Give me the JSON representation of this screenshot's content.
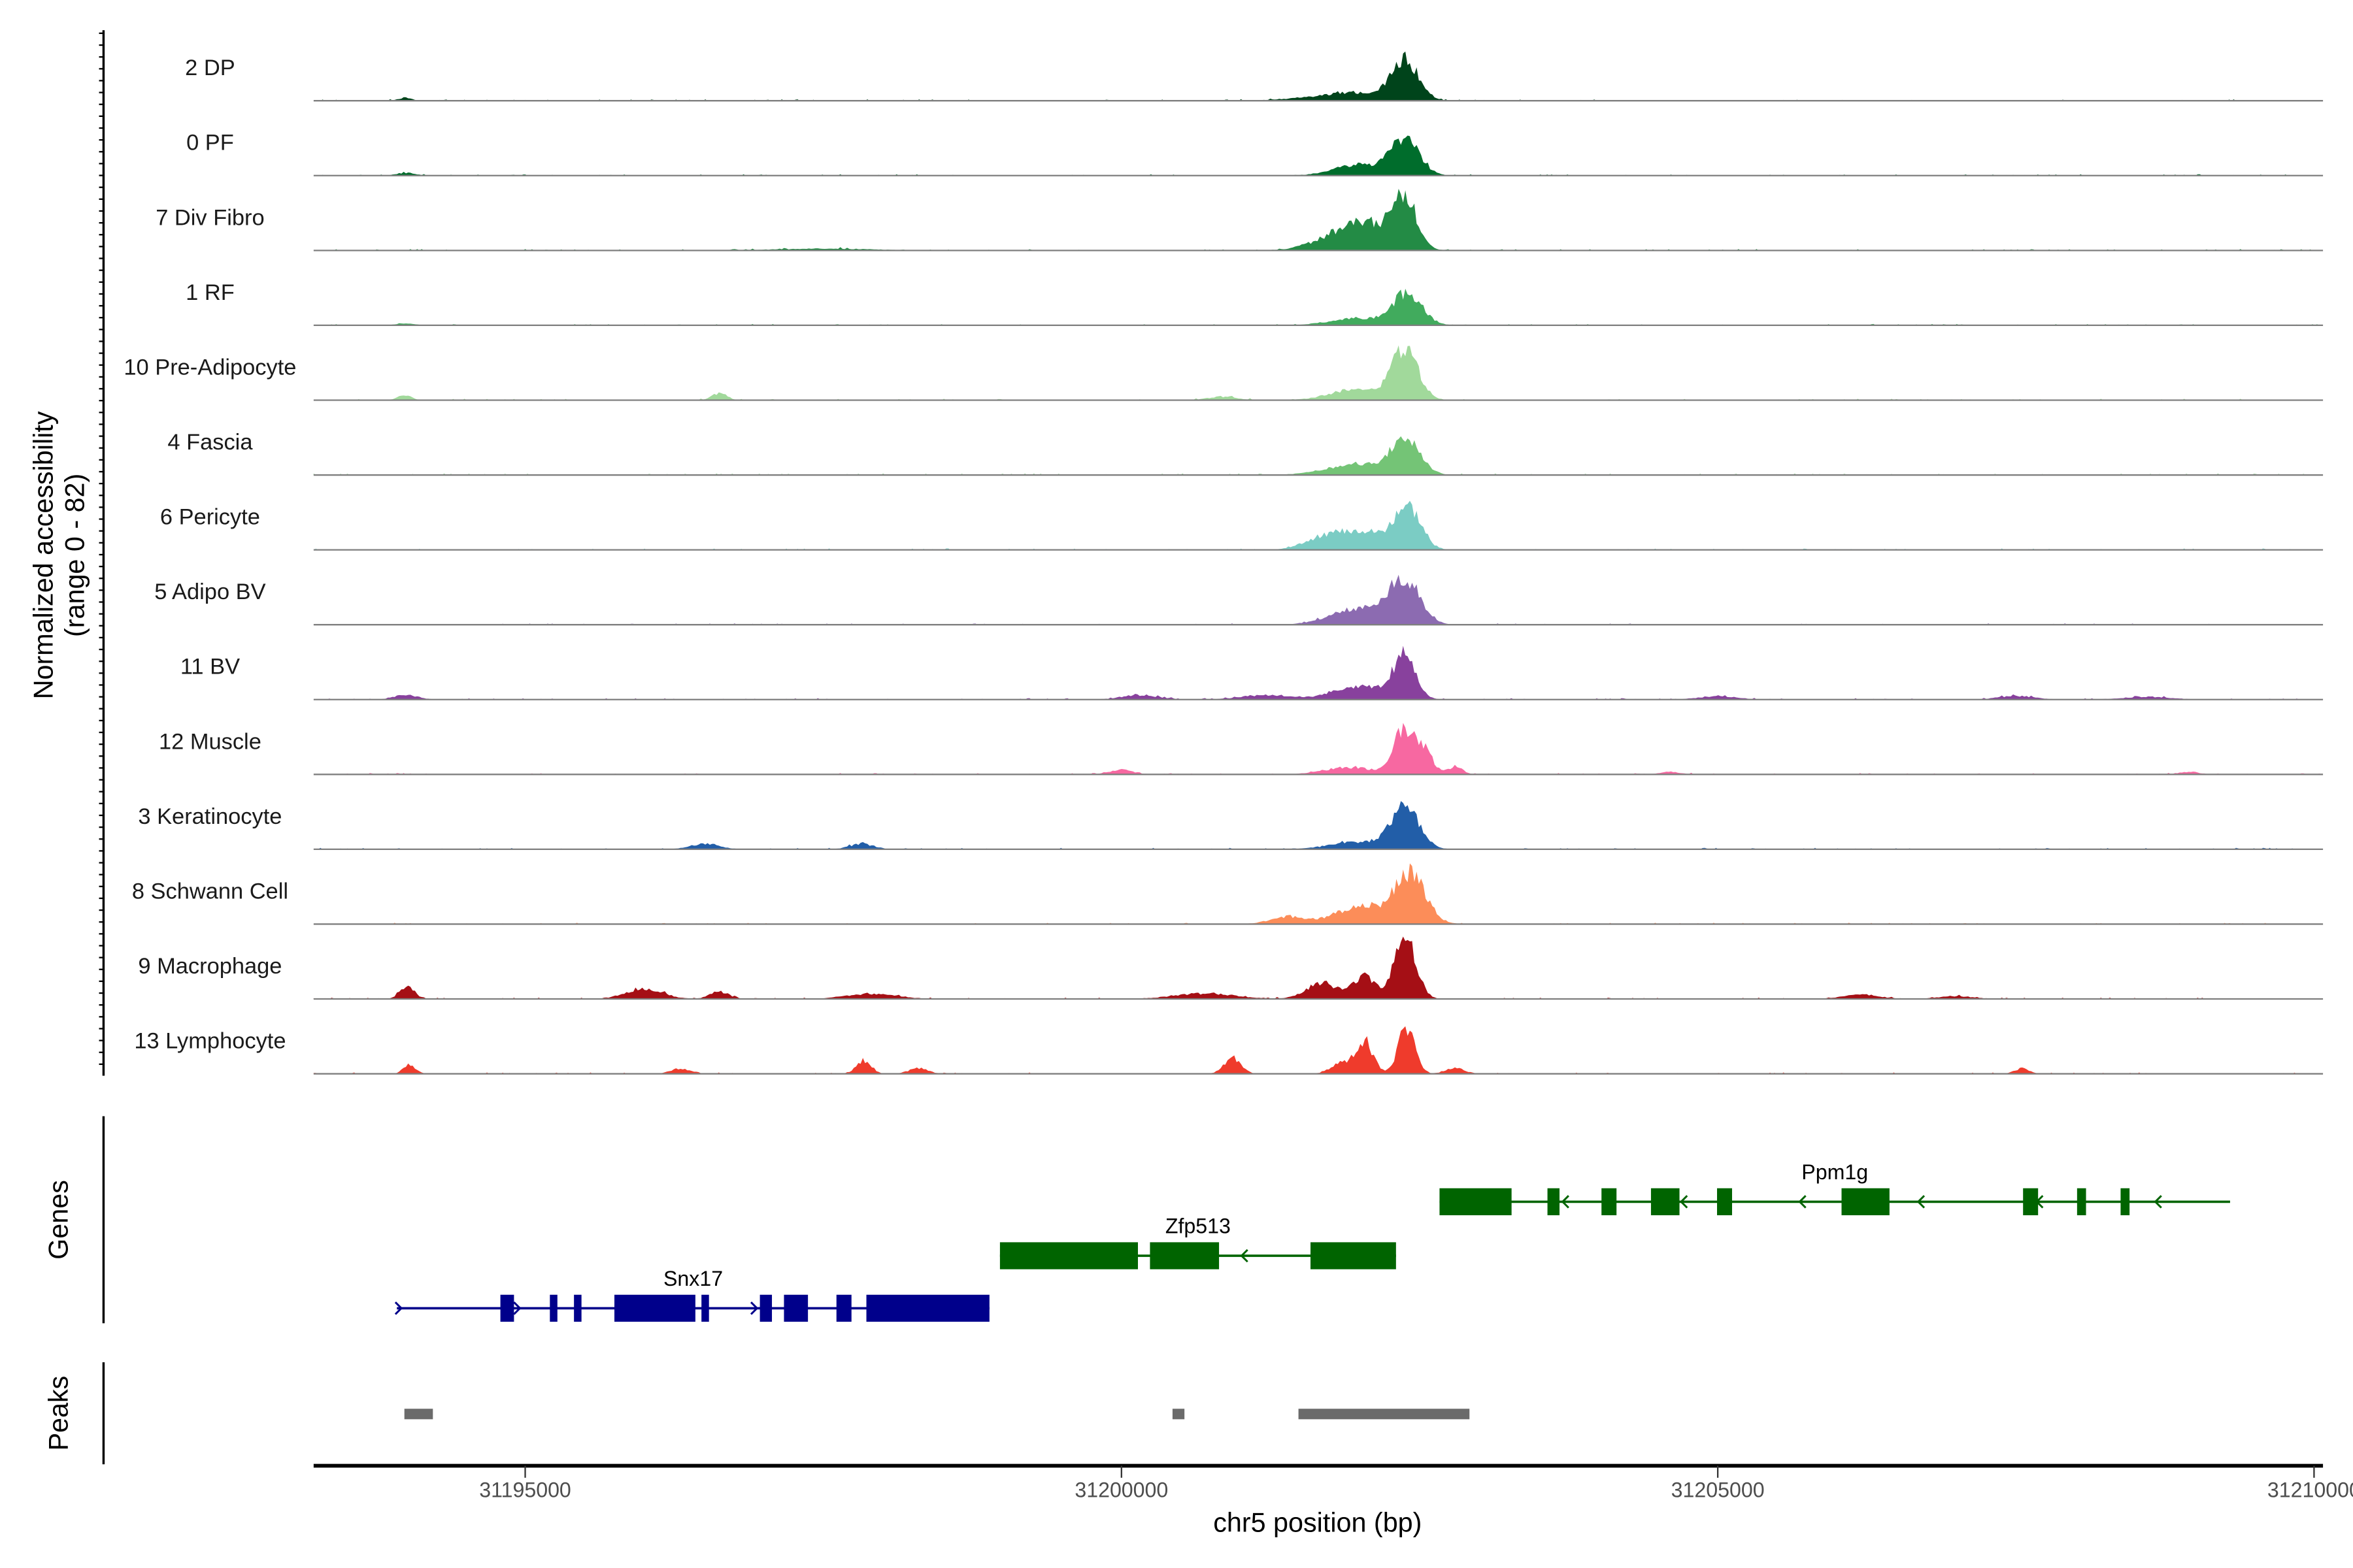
{
  "chart_data": {
    "type": "area",
    "xlabel": "chr5 position (bp)",
    "ylabel": "Normalized accessibility",
    "ylabel_range": "(range 0 - 82)",
    "xlim": [
      31193226,
      31210075
    ],
    "ylim": [
      0,
      82
    ],
    "x_ticks": [
      {
        "value": 31195000,
        "label": "31195000"
      },
      {
        "value": 31200000,
        "label": "31200000"
      },
      {
        "value": 31205000,
        "label": "31205000"
      },
      {
        "value": 31210000,
        "label": "31210000"
      }
    ],
    "tracks": [
      {
        "label": "2 DP",
        "color": "#00441b",
        "peaks": [
          [
            31202377,
            45,
            110
          ],
          [
            31201975,
            8,
            220
          ],
          [
            31193990,
            3,
            60
          ],
          [
            31201600,
            3,
            250
          ]
        ]
      },
      {
        "label": "0 PF",
        "color": "#006d2c",
        "peaks": [
          [
            31202377,
            40,
            120
          ],
          [
            31201975,
            12,
            200
          ],
          [
            31194000,
            3,
            80
          ]
        ]
      },
      {
        "label": "7 Div Fibro",
        "color": "#238b45",
        "peaks": [
          [
            31202377,
            55,
            100
          ],
          [
            31202050,
            28,
            200
          ],
          [
            31201750,
            10,
            200
          ],
          [
            31197500,
            2,
            400
          ]
        ]
      },
      {
        "label": "1 RF",
        "color": "#41ab5d",
        "peaks": [
          [
            31202400,
            35,
            120
          ],
          [
            31201975,
            8,
            220
          ],
          [
            31194000,
            2,
            80
          ]
        ]
      },
      {
        "label": "10 Pre-Adipocyte",
        "color": "#a1d99b",
        "peaks": [
          [
            31202377,
            55,
            110
          ],
          [
            31201975,
            12,
            220
          ],
          [
            31196631,
            8,
            60
          ],
          [
            31193990,
            5,
            60
          ],
          [
            31200850,
            4,
            120
          ]
        ]
      },
      {
        "label": "4 Fascia",
        "color": "#74c476",
        "peaks": [
          [
            31202377,
            38,
            120
          ],
          [
            31201975,
            12,
            250
          ]
        ]
      },
      {
        "label": "6 Pericyte",
        "color": "#7bccc4",
        "peaks": [
          [
            31202400,
            48,
            110
          ],
          [
            31202000,
            22,
            200
          ],
          [
            31201650,
            10,
            150
          ]
        ]
      },
      {
        "label": "5 Adipo BV",
        "color": "#8c6bb1",
        "peaks": [
          [
            31202377,
            48,
            130
          ],
          [
            31201975,
            18,
            220
          ]
        ]
      },
      {
        "label": "11 BV",
        "color": "#88419d",
        "peaks": [
          [
            31202377,
            50,
            90
          ],
          [
            31202000,
            15,
            220
          ],
          [
            31194000,
            5,
            100
          ],
          [
            31200150,
            5,
            150
          ],
          [
            31201200,
            5,
            200
          ],
          [
            31205000,
            4,
            150
          ],
          [
            31207500,
            4,
            150
          ],
          [
            31208600,
            3,
            200
          ]
        ]
      },
      {
        "label": "12 Muscle",
        "color": "#f768a1",
        "peaks": [
          [
            31202370,
            50,
            90
          ],
          [
            31202541,
            25,
            70
          ],
          [
            31201900,
            8,
            200
          ],
          [
            31202800,
            9,
            60
          ],
          [
            31200000,
            5,
            100
          ],
          [
            31204600,
            3,
            80
          ],
          [
            31208950,
            3,
            80
          ]
        ]
      },
      {
        "label": "3 Keratinocyte",
        "color": "#225ea8",
        "peaks": [
          [
            31202377,
            45,
            120
          ],
          [
            31201975,
            8,
            220
          ],
          [
            31197824,
            6,
            100
          ],
          [
            31196503,
            6,
            120
          ]
        ]
      },
      {
        "label": "8 Schwann Cell",
        "color": "#fc8d59",
        "peaks": [
          [
            31202420,
            55,
            130
          ],
          [
            31202000,
            20,
            200
          ],
          [
            31201400,
            8,
            150
          ]
        ]
      },
      {
        "label": "9 Macrophage",
        "color": "#a50f15",
        "peaks": [
          [
            31202377,
            70,
            90
          ],
          [
            31202038,
            25,
            90
          ],
          [
            31201680,
            18,
            130
          ],
          [
            31196000,
            12,
            150
          ],
          [
            31194010,
            15,
            60
          ],
          [
            31196631,
            8,
            80
          ],
          [
            31197900,
            6,
            200
          ],
          [
            31200700,
            6,
            250
          ],
          [
            31206200,
            5,
            150
          ],
          [
            31207000,
            3,
            150
          ]
        ]
      },
      {
        "label": "13 Lymphocyte",
        "color": "#ef3b2c",
        "peaks": [
          [
            31202390,
            50,
            70
          ],
          [
            31202040,
            35,
            70
          ],
          [
            31201850,
            12,
            90
          ],
          [
            31200931,
            18,
            70
          ],
          [
            31197840,
            15,
            60
          ],
          [
            31194030,
            10,
            50
          ],
          [
            31198300,
            6,
            80
          ],
          [
            31196300,
            6,
            80
          ],
          [
            31207550,
            6,
            60
          ],
          [
            31202800,
            6,
            80
          ]
        ]
      }
    ],
    "genes": {
      "title": "Genes",
      "items": [
        {
          "name": "Snx17",
          "strand": "+",
          "color": "#00008b",
          "start": 31193924,
          "end": 31198893,
          "exons": [
            [
              31194792,
              31194906
            ],
            [
              31195207,
              31195270
            ],
            [
              31195409,
              31195472
            ],
            [
              31195748,
              31196427
            ],
            [
              31196478,
              31196541
            ],
            [
              31196968,
              31197069
            ],
            [
              31197170,
              31197371
            ],
            [
              31197610,
              31197736
            ],
            [
              31197861,
              31198893
            ]
          ]
        },
        {
          "name": "Zfp513",
          "strand": "-",
          "color": "#006400",
          "start": 31198981,
          "end": 31202302,
          "exons": [
            [
              31198981,
              31200138
            ],
            [
              31200239,
              31200818
            ],
            [
              31201585,
              31202302
            ]
          ]
        },
        {
          "name": "Ppm1g",
          "strand": "-",
          "color": "#006400",
          "start": 31202667,
          "end": 31209296,
          "exons": [
            [
              31202667,
              31203271
            ],
            [
              31203572,
              31203673
            ],
            [
              31204025,
              31204151
            ],
            [
              31204440,
              31204679
            ],
            [
              31204994,
              31205120
            ],
            [
              31206038,
              31206440
            ],
            [
              31207560,
              31207686
            ],
            [
              31208013,
              31208088
            ],
            [
              31208378,
              31208453
            ]
          ]
        }
      ]
    },
    "peaks_track": {
      "title": "Peaks",
      "color": "#6b6b6b",
      "regions": [
        [
          31193987,
          31194226
        ],
        [
          31200428,
          31200528
        ],
        [
          31201484,
          31202918
        ]
      ]
    }
  }
}
